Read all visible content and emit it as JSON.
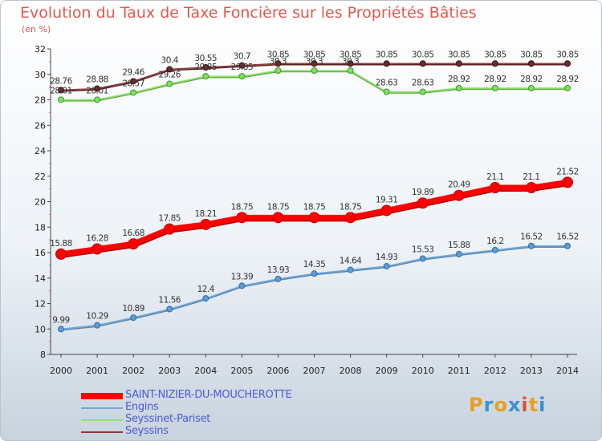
{
  "title": "Evolution du Taux de Taxe Foncière sur les Propriétés Bâties",
  "unit_label": "(en %)",
  "logo": {
    "text": "Proxiti",
    "colors": [
      "#e8a020",
      "#3a90d0",
      "#e8a020",
      "#3a90d0",
      "#e05030",
      "#e8a020",
      "#3a90d0"
    ]
  },
  "chart_data": {
    "type": "line",
    "x": [
      2000,
      2001,
      2002,
      2003,
      2004,
      2005,
      2006,
      2007,
      2008,
      2009,
      2010,
      2011,
      2012,
      2013,
      2014
    ],
    "ylim": [
      8,
      32
    ],
    "yticks": [
      8,
      10,
      12,
      14,
      16,
      18,
      20,
      22,
      24,
      26,
      28,
      30,
      32
    ],
    "grid": false,
    "legend_position": "bottom-left",
    "series": [
      {
        "name": "SAINT-NIZIER-DU-MOUCHEROTTE",
        "color": "#ff0000",
        "values": [
          15.88,
          16.28,
          16.68,
          17.85,
          18.21,
          18.75,
          18.75,
          18.75,
          18.75,
          19.31,
          19.89,
          20.49,
          21.1,
          21.1,
          21.52
        ],
        "labels": [
          "15.88",
          "16.28",
          "16.68",
          "17.85",
          "18.21",
          "18.75",
          "18.75",
          "18.75",
          "18.75",
          "19.31",
          "19.89",
          "20.49",
          "21.1",
          "21.1",
          "21.52"
        ]
      },
      {
        "name": "Engins",
        "color": "#6fa8d6",
        "values": [
          9.99,
          10.29,
          10.89,
          11.56,
          12.4,
          13.39,
          13.93,
          14.35,
          14.64,
          14.93,
          15.53,
          15.88,
          16.2,
          16.52,
          16.52
        ],
        "labels": [
          "9.99",
          "10.29",
          "10.89",
          "11.56",
          "12.4",
          "13.39",
          "13.93",
          "14.35",
          "14.64",
          "14.93",
          "15.53",
          "15.88",
          "16.2",
          "16.52",
          "16.52"
        ]
      },
      {
        "name": "Seyssinet-Pariset",
        "color": "#90e070",
        "values": [
          28.01,
          28.01,
          28.57,
          29.26,
          29.85,
          29.85,
          30.3,
          30.3,
          30.3,
          28.63,
          28.63,
          28.92,
          28.92,
          28.92,
          28.92
        ],
        "labels": [
          "28.01",
          "28.01",
          "28.57",
          "29.26",
          "29.85",
          "29.85",
          "30.3",
          "30.3",
          "30.3",
          "28.63",
          "28.63",
          "28.92",
          "28.92",
          "28.92",
          "28.92"
        ]
      },
      {
        "name": "Seyssins",
        "color": "#8b3a3a",
        "values": [
          28.76,
          28.88,
          29.46,
          30.4,
          30.55,
          30.7,
          30.85,
          30.85,
          30.85,
          30.85,
          30.85,
          30.85,
          30.85,
          30.85,
          30.85
        ],
        "labels": [
          "28.76",
          "28.88",
          "29.46",
          "30.4",
          "30.55",
          "30.7",
          "30.85",
          "30.85",
          "30.85",
          "30.85",
          "30.85",
          "30.85",
          "30.85",
          "30.85",
          "30.85"
        ]
      }
    ]
  }
}
